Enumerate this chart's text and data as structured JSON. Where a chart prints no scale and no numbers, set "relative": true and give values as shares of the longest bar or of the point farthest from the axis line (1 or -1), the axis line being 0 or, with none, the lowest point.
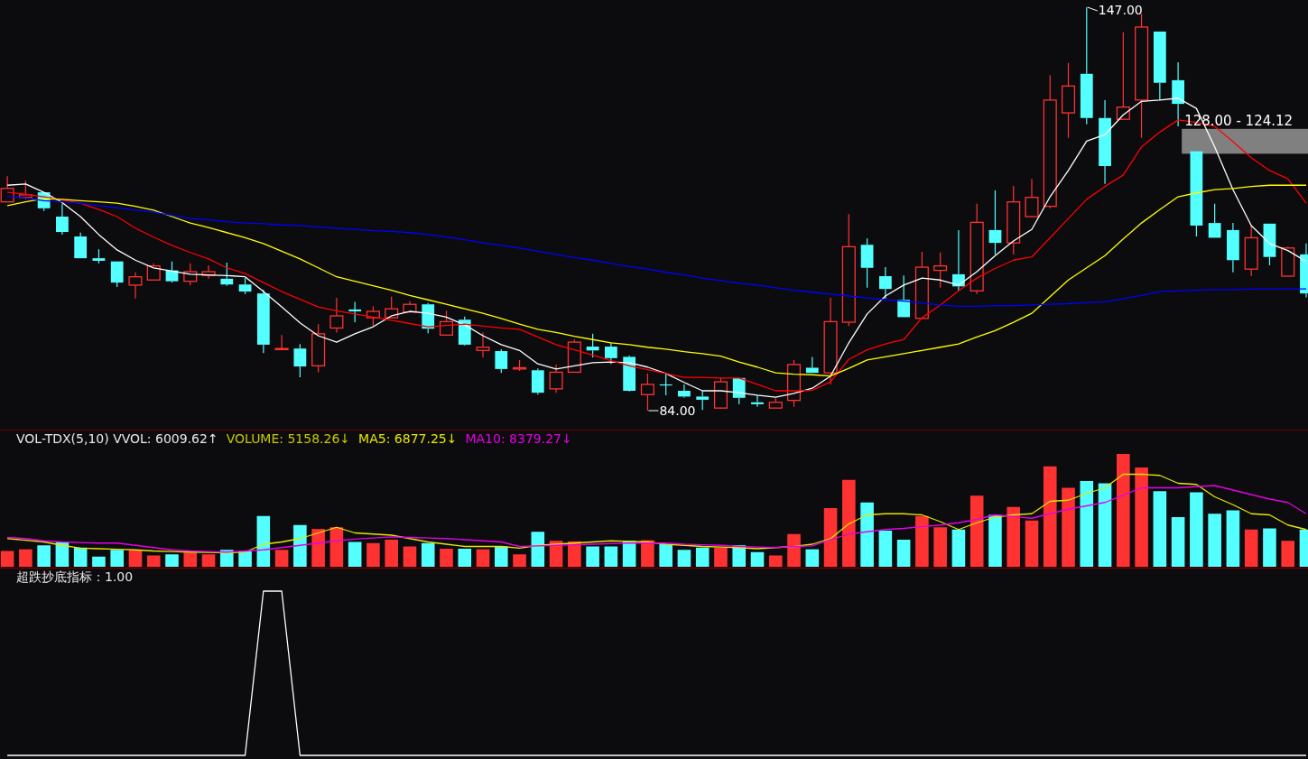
{
  "chart_data": [
    {
      "type": "candlestick",
      "categories": [
        null,
        null,
        null,
        null,
        null,
        null,
        null,
        null,
        null,
        null,
        null,
        null,
        null,
        null,
        null,
        null,
        null,
        null,
        null,
        null,
        null,
        null,
        null,
        null,
        null,
        null,
        null,
        null,
        null,
        null,
        null,
        null,
        null,
        null,
        null,
        null,
        null,
        null,
        null,
        null,
        null,
        null,
        null,
        null,
        null,
        null,
        null,
        null,
        null,
        null,
        null,
        null,
        null,
        null,
        null,
        null,
        null,
        null,
        null,
        null,
        null,
        null,
        null,
        null,
        null,
        null,
        null,
        null,
        null,
        null,
        null,
        null
      ],
      "ohlc": [
        [
          116.6,
          120.6,
          116.6,
          118.7
        ],
        [
          117.3,
          119.9,
          117.0,
          117.7
        ],
        [
          118.1,
          118.1,
          115.2,
          115.6
        ],
        [
          114.3,
          116.3,
          111.5,
          111.9
        ],
        [
          111.2,
          111.8,
          107.8,
          107.8
        ],
        [
          107.8,
          109.2,
          107.0,
          107.4
        ],
        [
          107.3,
          107.3,
          103.3,
          104.0
        ],
        [
          103.6,
          105.6,
          101.5,
          104.9
        ],
        [
          104.4,
          107.0,
          104.4,
          106.6
        ],
        [
          105.9,
          107.3,
          104.0,
          104.2
        ],
        [
          104.2,
          107.0,
          103.6,
          105.7
        ],
        [
          105.1,
          106.7,
          104.6,
          105.7
        ],
        [
          104.6,
          107.1,
          103.5,
          103.7
        ],
        [
          103.7,
          104.7,
          102.2,
          102.6
        ],
        [
          102.3,
          102.9,
          93.0,
          94.3
        ],
        [
          93.6,
          95.8,
          93.6,
          93.7
        ],
        [
          93.7,
          94.4,
          89.2,
          90.9
        ],
        [
          91.0,
          97.5,
          90.0,
          96.0
        ],
        [
          96.9,
          101.6,
          96.2,
          98.8
        ],
        [
          99.8,
          101.0,
          97.8,
          99.5
        ],
        [
          98.5,
          100.3,
          97.2,
          99.5
        ],
        [
          98.5,
          101.8,
          98.5,
          99.9
        ],
        [
          99.4,
          101.1,
          99.4,
          100.6
        ],
        [
          100.6,
          100.8,
          96.1,
          96.8
        ],
        [
          95.8,
          99.6,
          95.8,
          97.9
        ],
        [
          98.2,
          98.7,
          94.2,
          94.3
        ],
        [
          93.4,
          96.2,
          92.3,
          93.9
        ],
        [
          93.3,
          93.6,
          89.9,
          90.5
        ],
        [
          90.5,
          91.9,
          90.2,
          90.7
        ],
        [
          90.3,
          90.6,
          86.5,
          86.8
        ],
        [
          87.4,
          91.2,
          86.8,
          90.0
        ],
        [
          90.0,
          95.1,
          90.0,
          94.7
        ],
        [
          94.0,
          96.0,
          92.3,
          93.4
        ],
        [
          94.0,
          94.6,
          91.3,
          92.2
        ],
        [
          92.4,
          92.6,
          87.0,
          87.1
        ],
        [
          86.5,
          89.8,
          84.0,
          88.1
        ],
        [
          88.1,
          89.9,
          86.4,
          88.0
        ],
        [
          87.1,
          88.1,
          86.0,
          86.2
        ],
        [
          86.2,
          87.1,
          84.1,
          85.7
        ],
        [
          84.4,
          89.2,
          84.3,
          88.5
        ],
        [
          89.1,
          89.1,
          85.0,
          86.0
        ],
        [
          85.3,
          86.4,
          84.6,
          85.0
        ],
        [
          84.4,
          86.0,
          84.4,
          85.3
        ],
        [
          85.6,
          91.9,
          84.6,
          91.2
        ],
        [
          90.7,
          92.4,
          89.9,
          89.9
        ],
        [
          89.9,
          101.6,
          88.1,
          97.9
        ],
        [
          97.8,
          114.7,
          97.2,
          109.6
        ],
        [
          109.9,
          110.9,
          103.2,
          106.3
        ],
        [
          105.0,
          106.4,
          101.5,
          103.0
        ],
        [
          101.3,
          105.1,
          98.6,
          98.6
        ],
        [
          98.4,
          108.8,
          98.4,
          106.4
        ],
        [
          105.9,
          108.7,
          103.2,
          106.6
        ],
        [
          105.3,
          112.2,
          102.7,
          103.4
        ],
        [
          102.7,
          116.3,
          102.2,
          113.4
        ],
        [
          112.2,
          118.4,
          108.4,
          110.2
        ],
        [
          110.2,
          119.1,
          108.4,
          116.6
        ],
        [
          114.3,
          120.2,
          114.2,
          117.3
        ],
        [
          115.9,
          136.4,
          115.6,
          132.5
        ],
        [
          130.5,
          138.3,
          126.6,
          134.7
        ],
        [
          136.6,
          147.0,
          128.7,
          129.7
        ],
        [
          129.7,
          132.5,
          119.4,
          122.2
        ],
        [
          129.5,
          143.1,
          129.5,
          131.4
        ],
        [
          132.5,
          146.0,
          126.6,
          143.9
        ],
        [
          143.2,
          143.2,
          132.5,
          135.2
        ],
        [
          135.6,
          138.4,
          128.4,
          131.9
        ],
        [
          124.5,
          124.5,
          111.2,
          112.9
        ],
        [
          113.3,
          116.3,
          111.0,
          111.0
        ],
        [
          112.2,
          113.3,
          105.6,
          107.5
        ],
        [
          106.1,
          112.9,
          105.0,
          111.0
        ],
        [
          113.2,
          113.2,
          106.7,
          108.0
        ],
        [
          105.0,
          109.6,
          105.0,
          109.4
        ],
        [
          108.4,
          110.1,
          101.7,
          102.3
        ]
      ],
      "series": [
        {
          "type": "line",
          "color": "#ffffff",
          "values": [
            119.2,
            119.4,
            118.1,
            116.5,
            114.3,
            111.5,
            109.1,
            107.5,
            106.3,
            105.8,
            105.3,
            105.2,
            105.1,
            104.9,
            102.6,
            100.2,
            97.7,
            95.7,
            94.7,
            96.0,
            97.1,
            98.8,
            99.5,
            99.2,
            98.6,
            97.4,
            95.7,
            94.3,
            93.4,
            91.3,
            90.5,
            91.0,
            91.5,
            91.6,
            91.5,
            90.8,
            89.8,
            88.4,
            87.1,
            87.1,
            86.8,
            86.4,
            86.1,
            86.7,
            87.5,
            89.4,
            94.6,
            99.1,
            101.9,
            103.6,
            104.7,
            104.4,
            103.6,
            105.7,
            108.2,
            110.5,
            112.3,
            117.4,
            121.5,
            126.1,
            127.1,
            130.2,
            132.3,
            132.5,
            132.8,
            131.2,
            125.2,
            118.5,
            112.9,
            110.1,
            109.0,
            107.3
          ]
        },
        {
          "type": "line",
          "color": "#ff0000",
          "values": [
            118.1,
            117.8,
            117.4,
            116.9,
            116.4,
            115.4,
            114.3,
            112.5,
            111.1,
            109.8,
            108.7,
            107.7,
            106.3,
            105.4,
            104.0,
            102.6,
            101.4,
            100.2,
            99.6,
            99.1,
            98.6,
            98.1,
            97.6,
            97.1,
            97.3,
            97.5,
            97.2,
            96.9,
            96.7,
            95.5,
            94.3,
            93.5,
            92.7,
            91.8,
            91.0,
            90.4,
            89.8,
            89.2,
            89.2,
            89.1,
            89.1,
            88.1,
            87.1,
            87.1,
            87.2,
            88.5,
            92.0,
            93.5,
            94.4,
            95.1,
            98.5,
            100.5,
            102.7,
            104.7,
            106.2,
            107.5,
            108.0,
            111.0,
            114.0,
            117.0,
            119.0,
            120.8,
            125.2,
            127.5,
            129.4,
            129.0,
            128.4,
            126.0,
            123.5,
            121.5,
            120.2,
            116.4
          ]
        },
        {
          "type": "line",
          "color": "#ffff00",
          "values": [
            116.0,
            116.6,
            117.1,
            117.0,
            116.8,
            116.6,
            116.4,
            115.9,
            115.3,
            114.3,
            113.3,
            112.6,
            111.8,
            111.0,
            110.1,
            108.9,
            107.7,
            106.3,
            104.9,
            104.2,
            103.5,
            102.8,
            102.0,
            101.3,
            100.6,
            99.9,
            99.2,
            98.4,
            97.5,
            96.7,
            96.2,
            95.6,
            95.1,
            94.6,
            94.3,
            93.9,
            93.6,
            93.2,
            92.9,
            92.5,
            91.6,
            90.8,
            89.9,
            89.7,
            89.6,
            89.4,
            90.6,
            91.9,
            92.4,
            92.9,
            93.4,
            93.9,
            94.4,
            95.5,
            96.5,
            97.8,
            99.2,
            101.8,
            104.4,
            106.3,
            108.2,
            110.8,
            113.3,
            115.4,
            117.4,
            118.0,
            118.5,
            118.7,
            119.0,
            119.2,
            119.2,
            119.2
          ]
        },
        {
          "type": "line",
          "color": "#0000ff",
          "values": [
            117.5,
            117.2,
            116.8,
            116.6,
            116.4,
            116.0,
            115.7,
            115.3,
            115.0,
            114.5,
            114.0,
            113.8,
            113.5,
            113.3,
            113.2,
            113.0,
            112.9,
            112.7,
            112.5,
            112.3,
            112.1,
            112.0,
            111.8,
            111.5,
            111.1,
            110.7,
            110.2,
            109.8,
            109.4,
            108.9,
            108.4,
            107.9,
            107.5,
            107.0,
            106.5,
            106.1,
            105.6,
            105.2,
            104.7,
            104.3,
            103.9,
            103.6,
            103.2,
            102.8,
            102.5,
            102.2,
            101.9,
            101.6,
            101.3,
            101.1,
            100.8,
            100.5,
            100.3,
            100.3,
            100.4,
            100.4,
            100.5,
            100.6,
            100.7,
            100.9,
            101.0,
            101.5,
            102.0,
            102.6,
            102.7,
            102.8,
            102.9,
            102.9,
            103.0,
            103.0,
            103.0,
            103.0
          ]
        }
      ],
      "annotations": [
        "147.00",
        "84.00"
      ],
      "bands": [
        {
          "axis": "y",
          "from": 124.12,
          "to": 128.0,
          "label": "128.00 - 124.12",
          "color": "#808080"
        }
      ]
    },
    {
      "type": "bar",
      "title": "VOL-TDX(5,10) VVOL: 6009.62↑",
      "annotations": [
        "VOLUME: 5158.26↓"
      ],
      "relative": true,
      "categories": [
        null,
        null,
        null,
        null,
        null,
        null,
        null,
        null,
        null,
        null,
        null,
        null,
        null,
        null,
        null,
        null,
        null,
        null,
        null,
        null,
        null,
        null,
        null,
        null,
        null,
        null,
        null,
        null,
        null,
        null,
        null,
        null,
        null,
        null,
        null,
        null,
        null,
        null,
        null,
        null,
        null,
        null,
        null,
        null,
        null,
        null,
        null,
        null,
        null,
        null,
        null,
        null,
        null,
        null,
        null,
        null,
        null,
        null,
        null,
        null,
        null,
        null,
        null,
        null,
        null,
        null,
        null,
        null,
        null,
        null,
        null,
        null
      ],
      "series": [
        {
          "type": "bar",
          "values": [
            0.14,
            0.155,
            0.19,
            0.22,
            0.17,
            0.09,
            0.15,
            0.15,
            0.1,
            0.11,
            0.125,
            0.11,
            0.15,
            0.14,
            0.45,
            0.15,
            0.37,
            0.335,
            0.35,
            0.22,
            0.21,
            0.24,
            0.18,
            0.21,
            0.16,
            0.16,
            0.155,
            0.18,
            0.11,
            0.31,
            0.23,
            0.225,
            0.18,
            0.18,
            0.23,
            0.235,
            0.2,
            0.15,
            0.17,
            0.17,
            0.19,
            0.13,
            0.1,
            0.29,
            0.155,
            0.52,
            0.77,
            0.57,
            0.32,
            0.24,
            0.45,
            0.35,
            0.33,
            0.63,
            0.46,
            0.53,
            0.41,
            0.89,
            0.7,
            0.76,
            0.74,
            1,
            0.88,
            0.67,
            0.44,
            0.66,
            0.47,
            0.5,
            0.33,
            0.34,
            0.23,
            0.33
          ],
          "colors": [
            "#ff3232",
            "#ff3232",
            "#54ffff",
            "#54ffff",
            "#54ffff",
            "#54ffff",
            "#54ffff",
            "#ff3232",
            "#ff3232",
            "#54ffff",
            "#ff3232",
            "#ff3232",
            "#54ffff",
            "#54ffff",
            "#54ffff",
            "#ff3232",
            "#54ffff",
            "#ff3232",
            "#ff3232",
            "#54ffff",
            "#ff3232",
            "#ff3232",
            "#ff3232",
            "#54ffff",
            "#ff3232",
            "#54ffff",
            "#ff3232",
            "#54ffff",
            "#ff3232",
            "#54ffff",
            "#ff3232",
            "#ff3232",
            "#54ffff",
            "#54ffff",
            "#54ffff",
            "#ff3232",
            "#54ffff",
            "#54ffff",
            "#54ffff",
            "#ff3232",
            "#54ffff",
            "#54ffff",
            "#ff3232",
            "#ff3232",
            "#54ffff",
            "#ff3232",
            "#ff3232",
            "#54ffff",
            "#54ffff",
            "#54ffff",
            "#ff3232",
            "#ff3232",
            "#54ffff",
            "#ff3232",
            "#54ffff",
            "#ff3232",
            "#ff3232",
            "#ff3232",
            "#ff3232",
            "#54ffff",
            "#54ffff",
            "#ff3232",
            "#ff3232",
            "#54ffff",
            "#54ffff",
            "#54ffff",
            "#54ffff",
            "#54ffff",
            "#ff3232",
            "#54ffff",
            "#ff3232",
            "#54ffff"
          ]
        },
        {
          "type": "line",
          "name": "MA5: 6877.25↓",
          "color": "#e6e600",
          "values": [
            0.25,
            0.235,
            0.22,
            0.19,
            0.165,
            0.16,
            0.155,
            0.15,
            0.14,
            0.135,
            0.13,
            0.128,
            0.125,
            0.13,
            0.2,
            0.22,
            0.25,
            0.3,
            0.35,
            0.3,
            0.29,
            0.28,
            0.25,
            0.22,
            0.2,
            0.18,
            0.18,
            0.18,
            0.165,
            0.19,
            0.2,
            0.21,
            0.22,
            0.23,
            0.225,
            0.22,
            0.2,
            0.19,
            0.18,
            0.175,
            0.17,
            0.16,
            0.17,
            0.18,
            0.2,
            0.25,
            0.38,
            0.46,
            0.47,
            0.47,
            0.46,
            0.4,
            0.33,
            0.39,
            0.44,
            0.46,
            0.47,
            0.58,
            0.59,
            0.65,
            0.7,
            0.82,
            0.82,
            0.81,
            0.74,
            0.73,
            0.62,
            0.55,
            0.47,
            0.46,
            0.37,
            0.33
          ]
        },
        {
          "type": "line",
          "name": "MA10: 8379.27↓",
          "color": "#e600e6",
          "values": [
            0.26,
            0.25,
            0.23,
            0.22,
            0.215,
            0.21,
            0.21,
            0.19,
            0.17,
            0.15,
            0.14,
            0.135,
            0.13,
            0.14,
            0.15,
            0.17,
            0.19,
            0.21,
            0.23,
            0.245,
            0.255,
            0.265,
            0.26,
            0.255,
            0.25,
            0.24,
            0.23,
            0.22,
            0.18,
            0.185,
            0.19,
            0.195,
            0.2,
            0.205,
            0.21,
            0.21,
            0.21,
            0.2,
            0.195,
            0.19,
            0.18,
            0.175,
            0.17,
            0.18,
            0.185,
            0.24,
            0.29,
            0.31,
            0.33,
            0.34,
            0.355,
            0.37,
            0.39,
            0.42,
            0.46,
            0.445,
            0.43,
            0.47,
            0.51,
            0.54,
            0.57,
            0.635,
            0.7,
            0.7,
            0.7,
            0.71,
            0.72,
            0.68,
            0.64,
            0.6,
            0.57,
            0.47
          ]
        }
      ]
    },
    {
      "type": "line",
      "title": "超跌抄底指标：1.00",
      "relative": true,
      "color": "#ffffff",
      "categories": [
        null,
        null,
        null,
        null,
        null,
        null,
        null,
        null,
        null,
        null,
        null,
        null,
        null,
        null,
        null,
        null,
        null,
        null,
        null,
        null,
        null,
        null,
        null,
        null,
        null,
        null,
        null,
        null,
        null,
        null,
        null,
        null,
        null,
        null,
        null,
        null,
        null,
        null,
        null,
        null,
        null,
        null,
        null,
        null,
        null,
        null,
        null,
        null,
        null,
        null,
        null,
        null,
        null,
        null,
        null,
        null,
        null,
        null,
        null,
        null,
        null,
        null,
        null,
        null,
        null,
        null,
        null,
        null,
        null,
        null,
        null,
        null
      ],
      "values": [
        0,
        0,
        0,
        0,
        0,
        0,
        0,
        0,
        0,
        0,
        0,
        0,
        0,
        0,
        1,
        1,
        0,
        0,
        0,
        0,
        0,
        0,
        0,
        0,
        0,
        0,
        0,
        0,
        0,
        0,
        0,
        0,
        0,
        0,
        0,
        0,
        0,
        0,
        0,
        0,
        0,
        0,
        0,
        0,
        0,
        0,
        0,
        0,
        0,
        0,
        0,
        0,
        0,
        0,
        0,
        0,
        0,
        0,
        0,
        0,
        0,
        0,
        0,
        0,
        0,
        0,
        0,
        0,
        0,
        0,
        0,
        0
      ]
    }
  ]
}
